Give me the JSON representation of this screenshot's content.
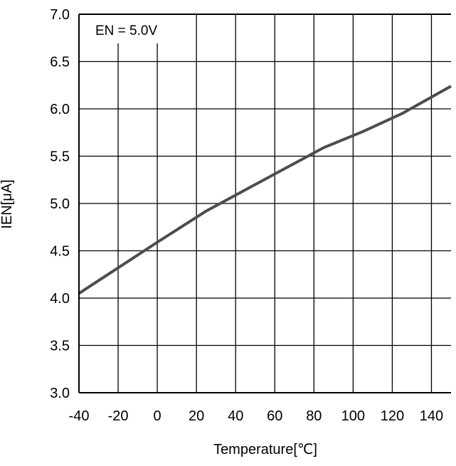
{
  "chart_data": {
    "type": "line",
    "annotation": "EN = 5.0V",
    "xlabel": "Temperature[℃]",
    "ylabel": "IEN[μA]",
    "xlim": [
      -40,
      150
    ],
    "ylim": [
      3.0,
      7.0
    ],
    "x_ticks": [
      -40,
      -20,
      0,
      20,
      40,
      60,
      80,
      100,
      120,
      140
    ],
    "x_tick_labels": [
      "-40",
      "-20",
      "0",
      "20",
      "40",
      "60",
      "80",
      "100",
      "120",
      "140"
    ],
    "y_ticks": [
      3.0,
      3.5,
      4.0,
      4.5,
      5.0,
      5.5,
      6.0,
      6.5,
      7.0
    ],
    "y_tick_labels": [
      "3.0",
      "3.5",
      "4.0",
      "4.5",
      "5.0",
      "5.5",
      "6.0",
      "6.5",
      "7.0"
    ],
    "x_gridlines": [
      -20,
      0,
      20,
      40,
      60,
      80,
      100,
      120,
      140
    ],
    "y_gridlines": [
      3.5,
      4.0,
      4.5,
      5.0,
      5.5,
      6.0,
      6.5
    ],
    "grid": true,
    "line_color": "#4d4d4d",
    "series": [
      {
        "x": [
          -40,
          -20,
          0,
          25,
          50,
          85,
          105,
          125,
          150
        ],
        "y": [
          4.05,
          4.32,
          4.59,
          4.92,
          5.2,
          5.59,
          5.76,
          5.95,
          6.24
        ]
      }
    ]
  }
}
